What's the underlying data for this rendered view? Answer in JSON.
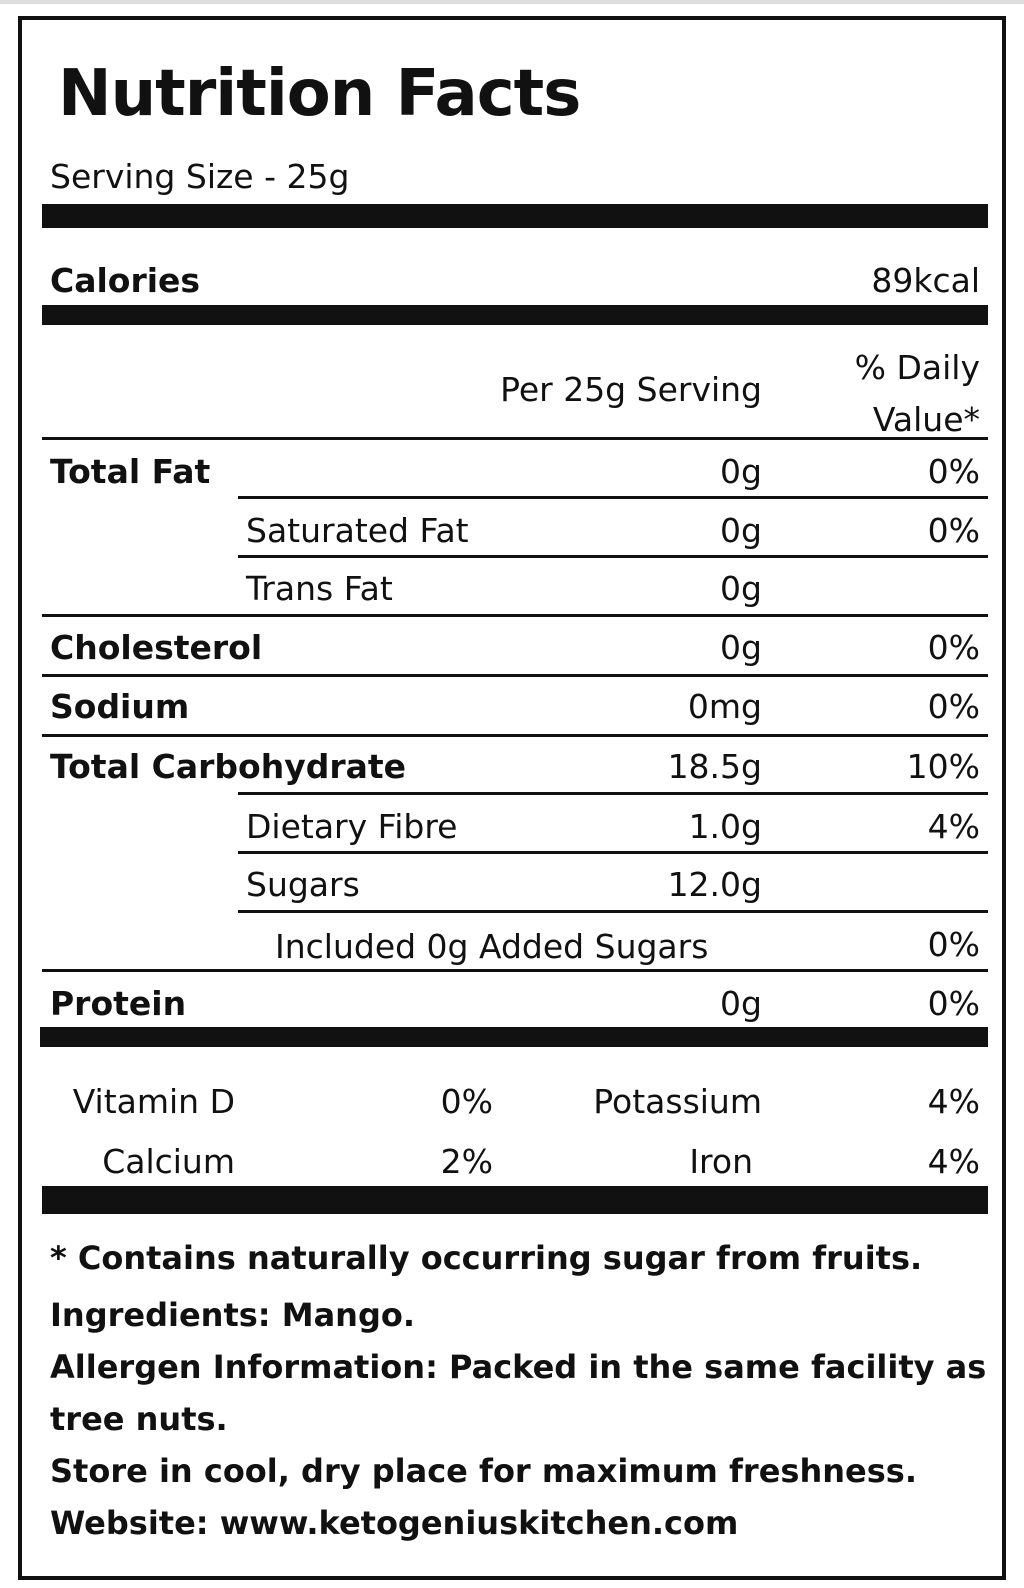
{
  "title": "Nutrition Facts",
  "serving_size": "Serving Size - 25g",
  "calories": {
    "label": "Calories",
    "value": "89kcal"
  },
  "header": {
    "per_serving": "Per 25g Serving",
    "dv_line1": "% Daily",
    "dv_line2": "Value*"
  },
  "rows": {
    "total_fat": {
      "label": "Total Fat",
      "amount": "0g",
      "dv": "0%"
    },
    "saturated_fat": {
      "label": "Saturated Fat",
      "amount": "0g",
      "dv": "0%"
    },
    "trans_fat": {
      "label": "Trans Fat",
      "amount": "0g"
    },
    "cholesterol": {
      "label": "Cholesterol",
      "amount": "0g",
      "dv": "0%"
    },
    "sodium": {
      "label": "Sodium",
      "amount": "0mg",
      "dv": "0%"
    },
    "total_carb": {
      "label": "Total Carbohydrate",
      "amount": "18.5g",
      "dv": "10%"
    },
    "dietary_fibre": {
      "label": "Dietary Fibre",
      "amount": "1.0g",
      "dv": "4%"
    },
    "sugars": {
      "label": "Sugars",
      "amount": "12.0g"
    },
    "added_sugars": {
      "label": "Included 0g Added Sugars",
      "dv": "0%"
    },
    "protein": {
      "label": "Protein",
      "amount": "0g",
      "dv": "0%"
    }
  },
  "vitamins": {
    "vitamin_d": {
      "label": "Vitamin D",
      "value": "0%"
    },
    "potassium": {
      "label": "Potassium",
      "value": "4%"
    },
    "calcium": {
      "label": "Calcium",
      "value": "2%"
    },
    "iron": {
      "label": "Iron",
      "value": "4%"
    }
  },
  "footer": {
    "note": "* Contains naturally occurring sugar from fruits.",
    "ingredients": "Ingredients: Mango.",
    "allergen_line1": "Allergen Information: Packed in the same facility as",
    "allergen_line2": "tree nuts.",
    "storage": "Store in cool, dry place for maximum freshness.",
    "website": "Website: www.ketogeniuskitchen.com"
  }
}
